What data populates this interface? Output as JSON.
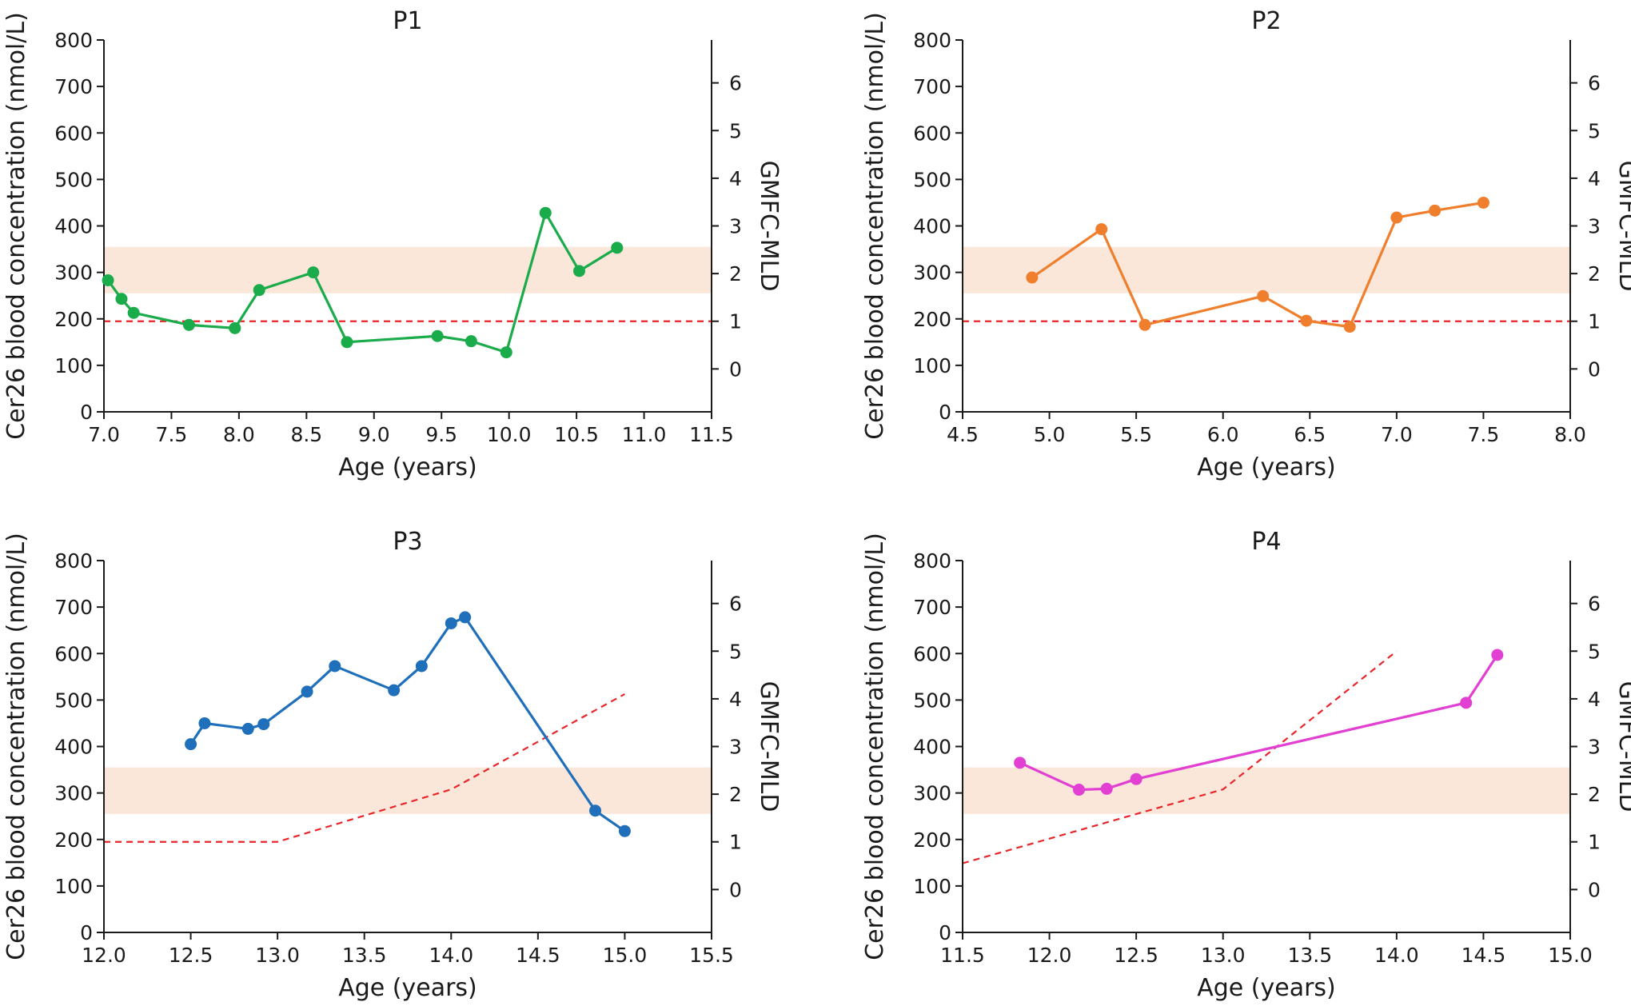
{
  "chart_data": [
    {
      "type": "line",
      "title": "P1",
      "xlabel": "Age (years)",
      "ylabel": "Cer26 blood concentration (nmol/L)",
      "y2label": "GMFC-MLD",
      "xlim": [
        7.0,
        11.5
      ],
      "xticks": [
        "7.0",
        "7.5",
        "8.0",
        "8.5",
        "9.0",
        "9.5",
        "10.0",
        "10.5",
        "11.0",
        "11.5"
      ],
      "ylim": [
        0,
        800
      ],
      "yticks": [
        "0",
        "100",
        "200",
        "300",
        "400",
        "500",
        "600",
        "700",
        "800"
      ],
      "y2ticks": [
        "0",
        "1",
        "2",
        "3",
        "4",
        "5",
        "6"
      ],
      "y2_at_bottom_of_axis": -0.9,
      "y2_at_top_of_axis": 6.9,
      "reference_band": [
        255,
        355
      ],
      "colors": {
        "series": "#1aab4b",
        "gmfc": "#e8262a",
        "band": "#fbe6da"
      },
      "series": [
        {
          "x": [
            7.03,
            7.13,
            7.22,
            7.63,
            7.97,
            8.15,
            8.55,
            8.8,
            9.47,
            9.72,
            9.98,
            10.27,
            10.52,
            10.8
          ],
          "values": [
            283,
            243,
            213,
            187,
            180,
            262,
            300,
            150,
            163,
            152,
            128,
            428,
            303,
            353
          ]
        }
      ],
      "gmfc": {
        "x": [
          7.0,
          11.5
        ],
        "values": [
          1,
          1
        ]
      }
    },
    {
      "type": "line",
      "title": "P2",
      "xlabel": "Age (years)",
      "ylabel": "Cer26 blood concentration (nmol/L)",
      "y2label": "GMFC-MLD",
      "xlim": [
        4.5,
        8.0
      ],
      "xticks": [
        "4.5",
        "5.0",
        "5.5",
        "6.0",
        "6.5",
        "7.0",
        "7.5",
        "8.0"
      ],
      "ylim": [
        0,
        800
      ],
      "yticks": [
        "0",
        "100",
        "200",
        "300",
        "400",
        "500",
        "600",
        "700",
        "800"
      ],
      "y2ticks": [
        "0",
        "1",
        "2",
        "3",
        "4",
        "5",
        "6"
      ],
      "y2_at_bottom_of_axis": -0.9,
      "y2_at_top_of_axis": 6.9,
      "reference_band": [
        255,
        355
      ],
      "colors": {
        "series": "#ef7f2d",
        "gmfc": "#e8262a",
        "band": "#fbe6da"
      },
      "series": [
        {
          "x": [
            4.9,
            5.3,
            5.55,
            6.23,
            6.48,
            6.73,
            7.0,
            7.22,
            7.5
          ],
          "values": [
            289,
            393,
            187,
            249,
            196,
            183,
            418,
            433,
            450
          ]
        }
      ],
      "gmfc": {
        "x": [
          4.5,
          8.0
        ],
        "values": [
          1,
          1
        ]
      }
    },
    {
      "type": "line",
      "title": "P3",
      "xlabel": "Age (years)",
      "ylabel": "Cer26 blood concentration (nmol/L)",
      "y2label": "GMFC-MLD",
      "xlim": [
        12.0,
        15.5
      ],
      "xticks": [
        "12.0",
        "12.5",
        "13.0",
        "13.5",
        "14.0",
        "14.5",
        "15.0",
        "15.5"
      ],
      "ylim": [
        0,
        800
      ],
      "yticks": [
        "0",
        "100",
        "200",
        "300",
        "400",
        "500",
        "600",
        "700",
        "800"
      ],
      "y2ticks": [
        "0",
        "1",
        "2",
        "3",
        "4",
        "5",
        "6"
      ],
      "y2_at_bottom_of_axis": -0.9,
      "y2_at_top_of_axis": 6.9,
      "reference_band": [
        255,
        355
      ],
      "colors": {
        "series": "#1f6fba",
        "gmfc": "#e8262a",
        "band": "#fbe6da"
      },
      "series": [
        {
          "x": [
            12.5,
            12.58,
            12.83,
            12.92,
            13.17,
            13.33,
            13.67,
            13.83,
            14.0,
            14.08,
            14.83,
            15.0
          ],
          "values": [
            405,
            450,
            438,
            448,
            518,
            573,
            521,
            573,
            665,
            678,
            262,
            218
          ]
        }
      ],
      "gmfc": {
        "x": [
          12.0,
          13.0,
          14.0,
          15.0
        ],
        "values": [
          1,
          1,
          2.1,
          4.1
        ]
      }
    },
    {
      "type": "line",
      "title": "P4",
      "xlabel": "Age (years)",
      "ylabel": "Cer26 blood concentration (nmol/L)",
      "y2label": "GMFC-MLD",
      "xlim": [
        11.5,
        15.0
      ],
      "xticks": [
        "11.5",
        "12.0",
        "12.5",
        "13.0",
        "13.5",
        "14.0",
        "14.5",
        "15.0"
      ],
      "ylim": [
        0,
        800
      ],
      "yticks": [
        "0",
        "100",
        "200",
        "300",
        "400",
        "500",
        "600",
        "700",
        "800"
      ],
      "y2ticks": [
        "0",
        "1",
        "2",
        "3",
        "4",
        "5",
        "6"
      ],
      "y2_at_bottom_of_axis": -0.9,
      "y2_at_top_of_axis": 6.9,
      "reference_band": [
        255,
        355
      ],
      "colors": {
        "series": "#e23fd3",
        "gmfc": "#e8262a",
        "band": "#fbe6da"
      },
      "series": [
        {
          "x": [
            11.83,
            12.17,
            12.33,
            12.5,
            14.4,
            14.58
          ],
          "values": [
            365,
            307,
            309,
            330,
            494,
            597
          ]
        }
      ],
      "gmfc": {
        "x": [
          11.5,
          13.0,
          14.0
        ],
        "values": [
          0.55,
          2.1,
          5.0
        ]
      }
    }
  ]
}
